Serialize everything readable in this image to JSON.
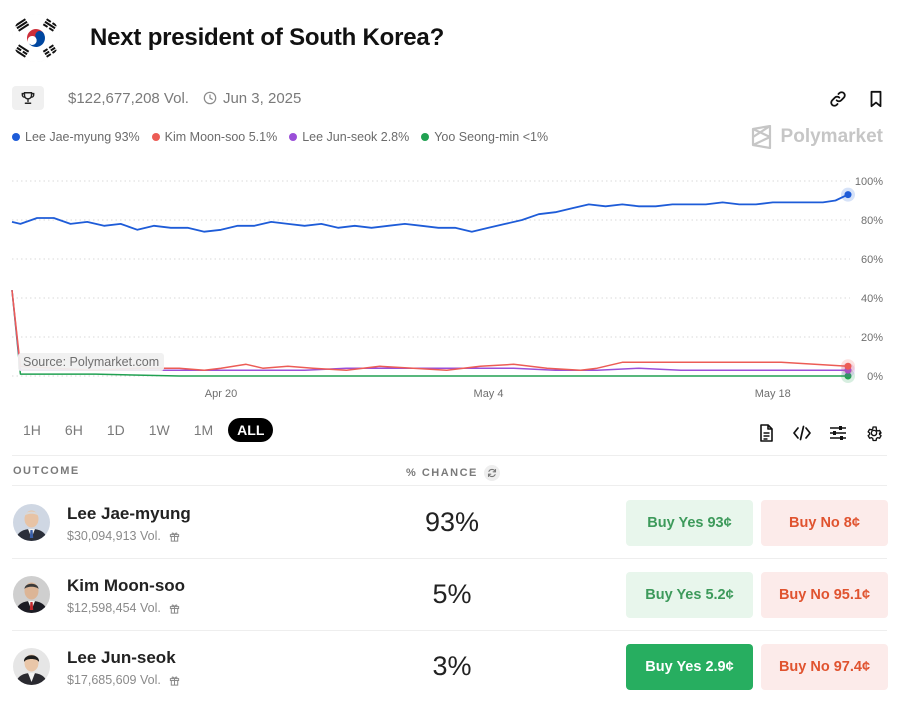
{
  "header": {
    "title": "Next president of South Korea?"
  },
  "meta": {
    "volume": "$122,677,208 Vol.",
    "date": "Jun 3, 2025"
  },
  "brand": {
    "name": "Polymarket"
  },
  "legend": [
    {
      "label": "Lee Jae-myung 93%",
      "color": "#1e5cd8"
    },
    {
      "label": "Kim Moon-soo 5.1%",
      "color": "#ec5c55"
    },
    {
      "label": "Lee Jun-seok 2.8%",
      "color": "#9a4fd8"
    },
    {
      "label": "Yoo Seong-min <1%",
      "color": "#21a152"
    }
  ],
  "source_label": "Source: Polymarket.com",
  "chart_data": {
    "type": "line",
    "y_tick_labels": [
      "100%",
      "80%",
      "60%",
      "40%",
      "20%",
      "0%"
    ],
    "y_ticks": [
      100,
      80,
      60,
      40,
      20,
      0
    ],
    "ylim": [
      0,
      100
    ],
    "x_tick_labels": [
      "Apr 20",
      "May 4",
      "May 18"
    ],
    "x_ticks": [
      0.25,
      0.57,
      0.91
    ],
    "grid": "horizontal dotted",
    "series": [
      {
        "name": "Lee Jae-myung",
        "color": "#1e5cd8",
        "x": [
          0,
          0.01,
          0.03,
          0.05,
          0.07,
          0.09,
          0.11,
          0.13,
          0.15,
          0.17,
          0.19,
          0.21,
          0.23,
          0.25,
          0.27,
          0.29,
          0.31,
          0.33,
          0.35,
          0.37,
          0.39,
          0.41,
          0.43,
          0.45,
          0.47,
          0.49,
          0.51,
          0.53,
          0.55,
          0.57,
          0.59,
          0.61,
          0.63,
          0.65,
          0.67,
          0.69,
          0.71,
          0.73,
          0.75,
          0.77,
          0.79,
          0.81,
          0.83,
          0.85,
          0.87,
          0.89,
          0.91,
          0.93,
          0.95,
          0.97,
          0.985,
          1.0
        ],
        "y": [
          79,
          78,
          81,
          81,
          78,
          79,
          77,
          78,
          75,
          77,
          76,
          76,
          74,
          75,
          77,
          77,
          79,
          78,
          77,
          78,
          76,
          77,
          76,
          77,
          78,
          77,
          76,
          76,
          74,
          76,
          78,
          80,
          83,
          84,
          86,
          88,
          87,
          88,
          87,
          87,
          88,
          88,
          88,
          89,
          88,
          88,
          89,
          89,
          89,
          89,
          90,
          93
        ]
      },
      {
        "name": "Kim Moon-soo",
        "color": "#ec5c55",
        "x": [
          0,
          0.01,
          0.05,
          0.1,
          0.15,
          0.2,
          0.23,
          0.25,
          0.28,
          0.3,
          0.33,
          0.36,
          0.4,
          0.44,
          0.48,
          0.52,
          0.56,
          0.6,
          0.64,
          0.68,
          0.7,
          0.73,
          0.76,
          0.8,
          0.84,
          0.88,
          0.92,
          0.96,
          1.0
        ],
        "y": [
          44,
          5,
          4,
          3,
          4,
          4,
          3,
          4,
          6,
          4,
          5,
          4,
          3,
          5,
          4,
          3,
          5,
          6,
          4,
          3,
          4,
          7,
          7,
          7,
          7,
          7,
          7,
          6,
          5
        ]
      },
      {
        "name": "Lee Jun-seok",
        "color": "#9a4fd8",
        "x": [
          0,
          0.01,
          0.05,
          0.1,
          0.15,
          0.2,
          0.25,
          0.3,
          0.35,
          0.4,
          0.45,
          0.5,
          0.55,
          0.6,
          0.65,
          0.7,
          0.75,
          0.8,
          0.85,
          0.9,
          0.95,
          1.0
        ],
        "y": [
          44,
          3,
          3,
          3,
          3,
          3,
          3,
          3,
          3,
          4,
          4,
          4,
          4,
          4,
          3,
          3,
          4,
          3,
          3,
          3,
          3,
          3
        ]
      },
      {
        "name": "Yoo Seong-min",
        "color": "#21a152",
        "x": [
          0,
          0.01,
          0.05,
          0.1,
          0.2,
          0.3,
          0.4,
          0.5,
          0.6,
          0.7,
          0.8,
          0.9,
          1.0
        ],
        "y": [
          44,
          1,
          1,
          1,
          0,
          0,
          0,
          0,
          0,
          0,
          0,
          0,
          0
        ]
      }
    ]
  },
  "ranges": [
    "1H",
    "6H",
    "1D",
    "1W",
    "1M",
    "ALL"
  ],
  "active_range": "ALL",
  "table": {
    "col_outcome": "OUTCOME",
    "col_chance": "% CHANCE",
    "rows": [
      {
        "name": "Lee Jae-myung",
        "volume": "$30,094,913 Vol.",
        "chance": "93%",
        "buy_yes": "Buy Yes 93¢",
        "buy_no": "Buy No 8¢",
        "tie": "#3a5fa8",
        "suit": "#2b2f3a"
      },
      {
        "name": "Kim Moon-soo",
        "volume": "$12,598,454 Vol.",
        "chance": "5%",
        "buy_yes": "Buy Yes 5.2¢",
        "buy_no": "Buy No 95.1¢",
        "tie": "#c0282d",
        "suit": "#1c1c24"
      },
      {
        "name": "Lee Jun-seok",
        "volume": "$17,685,609 Vol.",
        "chance": "3%",
        "buy_yes": "Buy Yes 2.9¢",
        "buy_no": "Buy No 97.4¢",
        "tie": "#ffffff",
        "suit": "#2a2a30"
      }
    ]
  }
}
